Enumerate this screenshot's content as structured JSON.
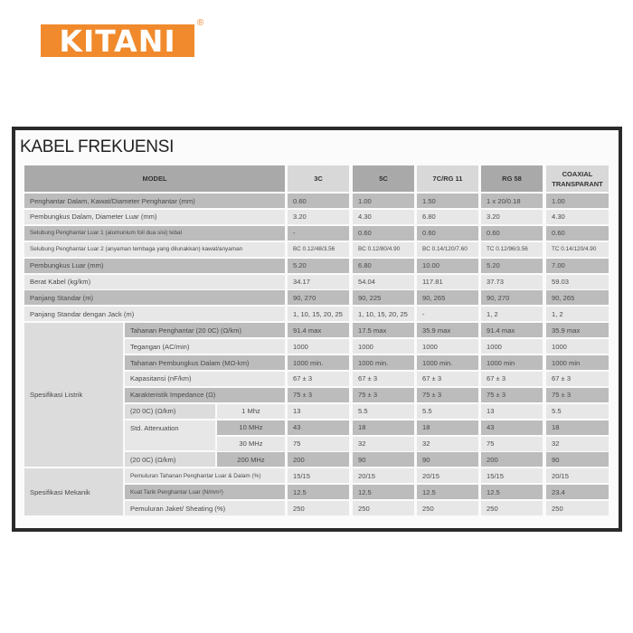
{
  "brand": {
    "logo_text": "KITANI",
    "registered": "®",
    "accent": "#f08a2c"
  },
  "title": "KABEL FREKUENSI",
  "header": {
    "model": "MODEL",
    "columns": [
      "3C",
      "5C",
      "7C/RG 11",
      "RG 58",
      "COAXIAL TRANSPARANT"
    ]
  },
  "general": [
    {
      "label": "Penghantar Dalam, Kawat/Diameter Penghantar (mm)",
      "values": [
        "0.60",
        "1.00",
        "1.50",
        "1 x 20/0.18",
        "1.00"
      ]
    },
    {
      "label": "Pembungkus Dalam, Diameter Luar (mm)",
      "values": [
        "3.20",
        "4.30",
        "6.80",
        "3.20",
        "4.30"
      ]
    },
    {
      "label": "Selubung Penghantar Luar 1 (alumunium foil dua sisi) tebal",
      "values": [
        "-",
        "0.60",
        "0.60",
        "0.60",
        "0.60"
      ]
    },
    {
      "label": "Selubung Penghantar Luar 2 (anyaman tembaga yang dilunakkan) kawat/anyaman",
      "values": [
        "BC 0.12/48/3.56",
        "BC 0.12/80/4.90",
        "BC 0.14/120/7.60",
        "TC 0.12/96/3.56",
        "TC 0.14/120/4.90"
      ]
    },
    {
      "label": "Pembungkus Luar (mm)",
      "values": [
        "5.20",
        "6.80",
        "10.00",
        "5.20",
        "7.00"
      ]
    },
    {
      "label": "Berat Kabel (kg/km)",
      "values": [
        "34.17",
        "54.04",
        "117.81",
        "37.73",
        "59.03"
      ]
    },
    {
      "label": "Panjang Standar (m)",
      "values": [
        "90, 270",
        "90, 225",
        "90, 265",
        "90, 270",
        "90, 265"
      ]
    },
    {
      "label": "Panjang Standar dengan Jack (m)",
      "values": [
        "1, 10, 15, 20, 25",
        "1, 10, 15, 20, 25",
        "-",
        "1, 2",
        "1, 2"
      ]
    }
  ],
  "electrical": {
    "label": "Spesifikasi Listrik",
    "rows": [
      {
        "param": "Tahanan Penghantar (20 0C) (Ω/km)",
        "values": [
          "91.4 max",
          "17.5 max",
          "35.9 max",
          "91.4 max",
          "35.9 max"
        ]
      },
      {
        "param": "Tegangan (AC/min)",
        "values": [
          "1000",
          "1000",
          "1000",
          "1000",
          "1000"
        ]
      },
      {
        "param": "Tahanan Pembungkus Dalam (MΩ-km)",
        "values": [
          "1000 min.",
          "1000 min.",
          "1000 min.",
          "1000 min",
          "1000 min"
        ]
      },
      {
        "param": "Kapasitansi (nF/km)",
        "values": [
          "67 ± 3",
          "67 ± 3",
          "67 ± 3",
          "67 ± 3",
          "67 ± 3"
        ]
      },
      {
        "param": "Karakteristik Impedance (Ω)",
        "values": [
          "75 ± 3",
          "75 ± 3",
          "75 ± 3",
          "75 ± 3",
          "75 ± 3"
        ]
      }
    ],
    "attenuation": {
      "param_top": "(20 0C) (Ω/km)",
      "param_mid": "Std. Attenuation",
      "param_bottom": "(20 0C) (Ω/km)",
      "rows": [
        {
          "freq": "1 Mhz",
          "values": [
            "13",
            "5.5",
            "5.5",
            "13",
            "5.5"
          ]
        },
        {
          "freq": "10 MHz",
          "values": [
            "43",
            "18",
            "18",
            "43",
            "18"
          ]
        },
        {
          "freq": "30 MHz",
          "values": [
            "75",
            "32",
            "32",
            "75",
            "32"
          ]
        },
        {
          "freq": "200 MHz",
          "values": [
            "200",
            "90",
            "90",
            "200",
            "90"
          ]
        }
      ]
    }
  },
  "mechanical": {
    "label": "Spesifikasi Mekanik",
    "rows": [
      {
        "param": "Pemuluran Tahanan Penghantar Luar & Dalam  (%)",
        "values": [
          "15/15",
          "20/15",
          "20/15",
          "15/15",
          "20/15"
        ]
      },
      {
        "param": "Kuat Tarik Penghantar Luar (N/mm²)",
        "values": [
          "12.5",
          "12.5",
          "12.5",
          "12.5",
          "23.4"
        ]
      },
      {
        "param": "Pemuluran Jaket/ Sheating (%)",
        "values": [
          "250",
          "250",
          "250",
          "250",
          "250"
        ]
      }
    ]
  }
}
